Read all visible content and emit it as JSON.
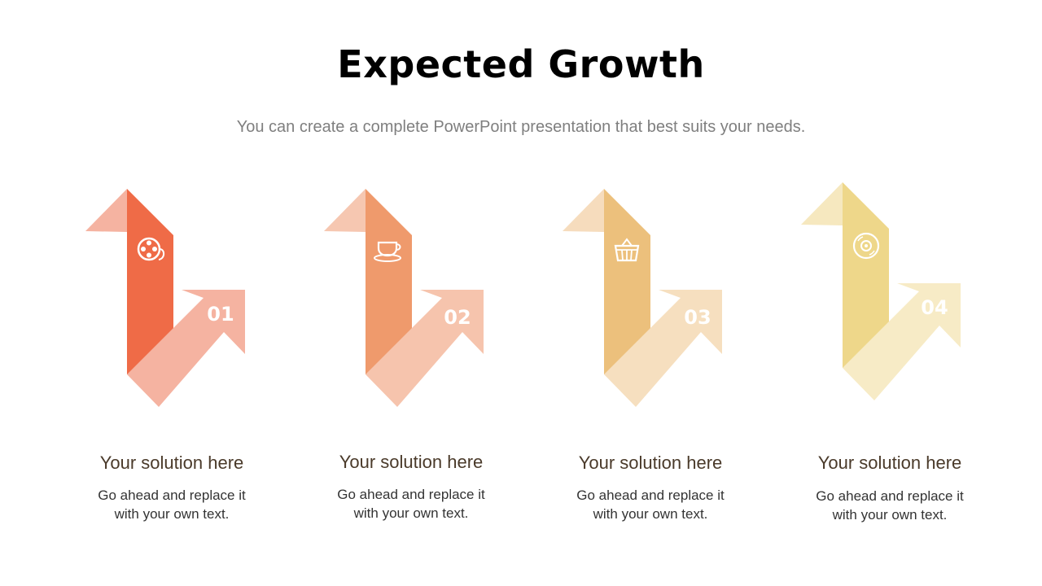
{
  "slide": {
    "title": "Expected Growth",
    "subtitle": "You can create a complete PowerPoint presentation that best suits your needs."
  },
  "steps": [
    {
      "number": "01",
      "icon": "film-reel-icon",
      "heading": "Your solution here",
      "body_line1": "Go ahead and replace it",
      "body_line2": "with your own text.",
      "colors": {
        "light": "#f5b3a1",
        "dark": "#ef6b47",
        "mid": "#f4a991"
      }
    },
    {
      "number": "02",
      "icon": "coffee-cup-icon",
      "heading": "Your solution here",
      "body_line1": "Go ahead and replace it",
      "body_line2": "with your own text.",
      "colors": {
        "light": "#f6c7b1",
        "dark": "#ef9a6c",
        "mid": "#f6c4ad"
      }
    },
    {
      "number": "03",
      "icon": "shopping-basket-icon",
      "heading": "Your solution here",
      "body_line1": "Go ahead and replace it",
      "body_line2": "with your own text.",
      "colors": {
        "light": "#f6dcbd",
        "dark": "#ecc07c",
        "mid": "#f6dfbf"
      }
    },
    {
      "number": "04",
      "icon": "vinyl-disc-icon",
      "heading": "Your solution here",
      "body_line1": "Go ahead and replace it",
      "body_line2": "with your own text.",
      "colors": {
        "light": "#f6e8bf",
        "dark": "#eed78a",
        "mid": "#f7ebc6"
      }
    }
  ]
}
